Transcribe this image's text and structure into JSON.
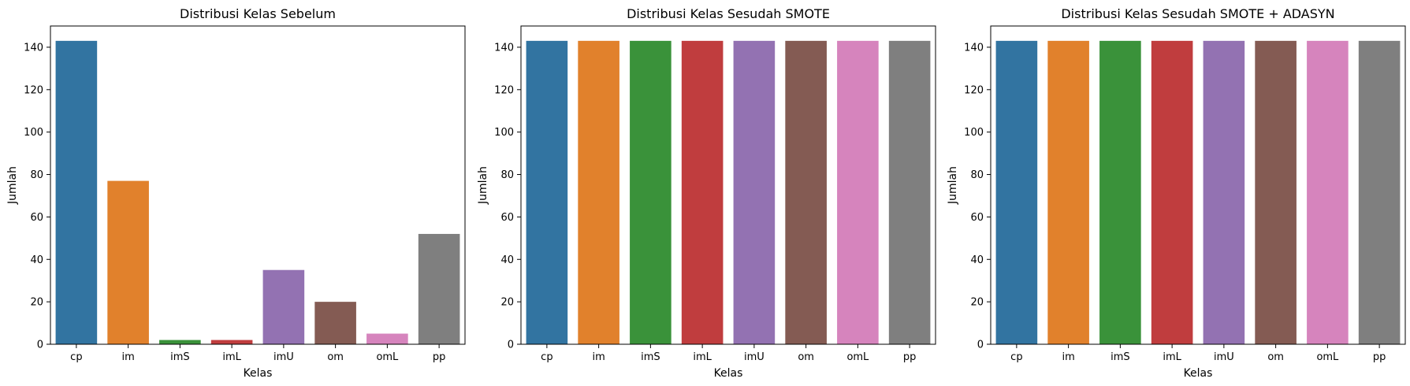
{
  "chart_data": [
    {
      "type": "bar",
      "title": "Distribusi Kelas Sebelum",
      "xlabel": "Kelas",
      "ylabel": "Jumlah",
      "categories": [
        "cp",
        "im",
        "imS",
        "imL",
        "imU",
        "om",
        "omL",
        "pp"
      ],
      "values": [
        143,
        77,
        2,
        2,
        35,
        20,
        5,
        52
      ],
      "ylim": [
        0,
        150
      ],
      "yticks": [
        "0",
        "20",
        "40",
        "60",
        "80",
        "100",
        "120",
        "140"
      ],
      "grid": false
    },
    {
      "type": "bar",
      "title": "Distribusi Kelas Sesudah SMOTE",
      "xlabel": "Kelas",
      "ylabel": "Jumlah",
      "categories": [
        "cp",
        "im",
        "imS",
        "imL",
        "imU",
        "om",
        "omL",
        "pp"
      ],
      "values": [
        143,
        143,
        143,
        143,
        143,
        143,
        143,
        143
      ],
      "ylim": [
        0,
        150
      ],
      "yticks": [
        "0",
        "20",
        "40",
        "60",
        "80",
        "100",
        "120",
        "140"
      ],
      "grid": false
    },
    {
      "type": "bar",
      "title": "Distribusi Kelas Sesudah SMOTE + ADASYN",
      "xlabel": "Kelas",
      "ylabel": "Jumlah",
      "categories": [
        "cp",
        "im",
        "imS",
        "imL",
        "imU",
        "om",
        "omL",
        "pp"
      ],
      "values": [
        143,
        143,
        143,
        143,
        143,
        143,
        143,
        143
      ],
      "ylim": [
        0,
        150
      ],
      "yticks": [
        "0",
        "20",
        "40",
        "60",
        "80",
        "100",
        "120",
        "140"
      ],
      "grid": false
    }
  ],
  "colors": {
    "bars": [
      "#3274a1",
      "#e1812c",
      "#3a923a",
      "#c03d3e",
      "#9372b2",
      "#845b53",
      "#d684bd",
      "#7f7f7f"
    ]
  }
}
